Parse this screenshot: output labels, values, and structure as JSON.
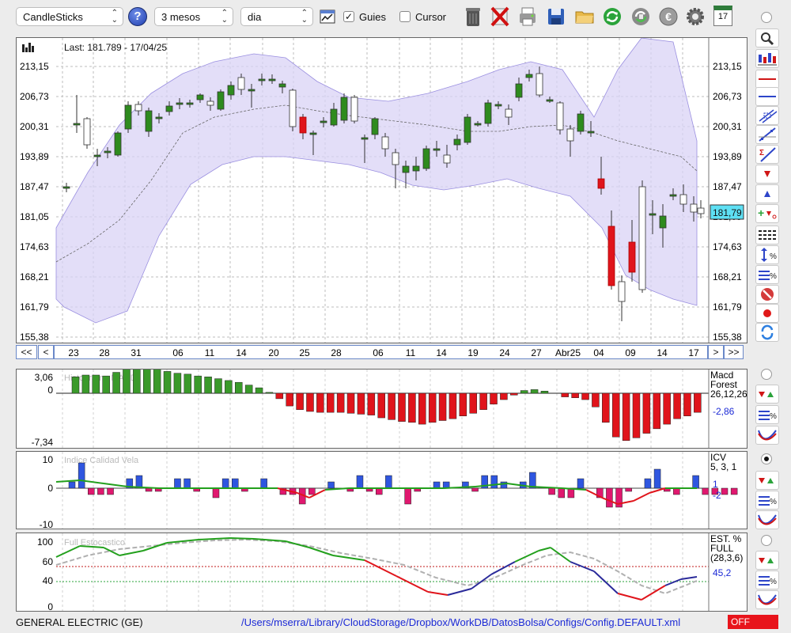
{
  "toolbar": {
    "chart_type": "CandleSticks",
    "period": "3 mesos",
    "interval": "dia",
    "guides_label": "Guies",
    "guides_checked": true,
    "cursor_label": "Cursor",
    "cursor_checked": false,
    "help_label": "?",
    "tools": [
      "trash-icon",
      "delete-drawings-icon",
      "print-icon",
      "save-icon",
      "open-folder-icon",
      "refresh-icon",
      "reload-data-icon",
      "currency-icon",
      "settings-icon",
      "calendar-icon"
    ],
    "calendar_day": "17"
  },
  "main": {
    "last_label": "Last: 181.789 - 17/04/25",
    "current_value": "181,79",
    "price_ticks": [
      "213,15",
      "206,73",
      "200,31",
      "193,89",
      "187,47",
      "181,05",
      "174,63",
      "168,21",
      "161,79",
      "155,38"
    ],
    "date_ticks": [
      "23",
      "28",
      "31",
      "06",
      "11",
      "14",
      "20",
      "25",
      "28",
      "06",
      "11",
      "14",
      "19",
      "24",
      "27",
      "Abr25",
      "04",
      "09",
      "14",
      "17"
    ],
    "nav": {
      "first": "<<",
      "prev": "<",
      "next": ">",
      "last": ">>"
    }
  },
  "macd": {
    "title": "Histograma MACD",
    "label_line1": "Macd",
    "label_line2": "Forest",
    "params": "26,12,26",
    "value": "-2,86",
    "top_tick": "3,06",
    "zero_tick": "0",
    "bottom_tick": "-7,34"
  },
  "icv": {
    "title": "Indice Calidad Vela",
    "label": "ICV",
    "params": "5, 3, 1",
    "value1": "1",
    "value2": "-2",
    "ticks": [
      "10",
      "0",
      "-10"
    ]
  },
  "stoch": {
    "title": "Full Estocastico",
    "label_line1": "EST. %",
    "label_line2": "FULL",
    "params": "(28,3,6)",
    "value": "45,2",
    "ticks": [
      "100",
      "60",
      "40",
      "0"
    ]
  },
  "status": {
    "security": "GENERAL ELECTRIC (GE)",
    "config_path": "/Users/mserra/Library/CloudStorage/Dropbox/WorkDB/DatosBolsa/Configs/Config.DEFAULT.xml",
    "off_label": "OFF"
  },
  "colors": {
    "bull": "#2e8b1e",
    "bear": "#e0141b",
    "band_fill": "#d9d3f6",
    "macd_pos": "#3a9a2a",
    "macd_neg": "#e0141b",
    "icv_pos": "#2f56e0",
    "icv_neg": "#e0186f",
    "stoch_k": "#23a01d",
    "stoch_d": "#9a9a9a"
  }
}
